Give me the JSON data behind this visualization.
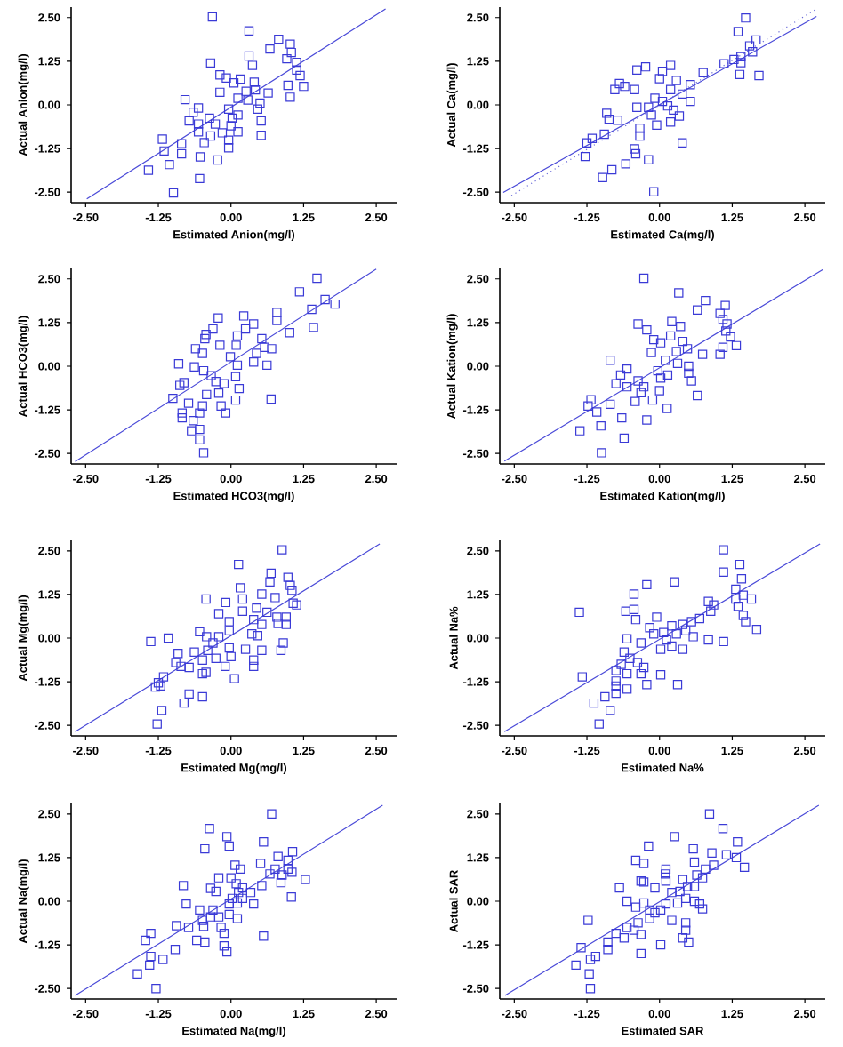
{
  "chart_data": [
    {
      "type": "scatter",
      "xlabel": "Estimated Anion(mg/l)",
      "ylabel": "Actual Anion(mg/l)",
      "xlim": [
        -2.75,
        2.85
      ],
      "ylim": [
        -2.8,
        2.8
      ],
      "xticks": [
        {
          "value": -2.5,
          "label": "-2.50"
        },
        {
          "value": -1.25,
          "label": "-1.25"
        },
        {
          "value": 0,
          "label": "0.00"
        },
        {
          "value": 1.25,
          "label": "1.25"
        },
        {
          "value": 2.5,
          "label": "2.50"
        }
      ],
      "yticks": [
        {
          "value": -2.5,
          "label": "-2.50"
        },
        {
          "value": -1.25,
          "label": "-1.25"
        },
        {
          "value": 0,
          "label": "0.00"
        },
        {
          "value": 1.25,
          "label": "1.25"
        },
        {
          "value": 2.5,
          "label": "2.50"
        }
      ],
      "series": [
        {
          "marker": "square",
          "color": "#3a3ad6",
          "x": [
            -0.32,
            0.31,
            0.82,
            1.02,
            0.67,
            0.31,
            1.04,
            0.96,
            -0.35,
            0.37,
            1.13,
            1.13,
            1.19,
            1.25,
            0.98,
            1.02,
            -0.19,
            -0.08,
            0.16,
            0.05,
            0.4,
            -0.19,
            0.64,
            0.42,
            0.26,
            0.12,
            0.29,
            0.5,
            0.46,
            -0.79,
            -0.65,
            -0.56,
            -0.72,
            -0.56,
            -0.37,
            -0.27,
            -0.04,
            0.02,
            0.12,
            0.0,
            0.12,
            -0.04,
            -0.04,
            -0.46,
            -0.35,
            -0.15,
            -0.56,
            0.52,
            0.52,
            -0.85,
            -0.85,
            -1.18,
            -1.15,
            -1.06,
            -1.42,
            -0.53,
            -0.23,
            -0.54,
            -0.99
          ],
          "values": [
            2.52,
            2.12,
            1.88,
            1.74,
            1.6,
            1.4,
            1.5,
            1.32,
            1.2,
            1.13,
            1.22,
            1.0,
            0.84,
            0.53,
            0.56,
            0.22,
            0.86,
            0.77,
            0.74,
            0.63,
            0.65,
            0.36,
            0.34,
            0.43,
            0.39,
            0.19,
            0.14,
            0.05,
            -0.12,
            0.15,
            -0.21,
            -0.09,
            -0.46,
            -0.55,
            -0.38,
            -0.55,
            -0.12,
            -0.38,
            -0.29,
            -0.6,
            -0.77,
            -1.01,
            -1.23,
            -1.08,
            -0.89,
            -0.8,
            -0.77,
            -0.46,
            -0.87,
            -1.11,
            -1.4,
            -0.98,
            -1.32,
            -1.71,
            -1.87,
            -1.49,
            -1.58,
            -2.11,
            -2.52
          ]
        },
        {
          "type": "line",
          "marker": "none",
          "color": "#4a4ad8",
          "line_style": "solid",
          "x": [
            -2.48,
            2.66
          ],
          "values": [
            -2.69,
            2.75
          ]
        }
      ]
    },
    {
      "type": "scatter",
      "xlabel": "Estimated Ca(mg/l)",
      "ylabel": "Actual Ca(mg/l)",
      "xlim": [
        -2.75,
        2.85
      ],
      "ylim": [
        -2.8,
        2.8
      ],
      "xticks": [
        {
          "value": -2.5,
          "label": "-2.50"
        },
        {
          "value": -1.25,
          "label": "-1.25"
        },
        {
          "value": 0,
          "label": "0.00"
        },
        {
          "value": 1.25,
          "label": "1.25"
        },
        {
          "value": 2.5,
          "label": "2.50"
        }
      ],
      "yticks": [
        {
          "value": -2.5,
          "label": "-2.50"
        },
        {
          "value": -1.25,
          "label": "-1.25"
        },
        {
          "value": 0,
          "label": "0.00"
        },
        {
          "value": 1.25,
          "label": "1.25"
        },
        {
          "value": 2.5,
          "label": "2.50"
        }
      ],
      "series": [
        {
          "marker": "square",
          "color": "#3a3ad6",
          "x": [
            1.48,
            1.35,
            1.66,
            1.55,
            1.6,
            1.4,
            1.28,
            1.4,
            1.11,
            0.75,
            1.38,
            1.71,
            -0.24,
            -0.39,
            0.19,
            0.05,
            -0.69,
            -0.6,
            -0.77,
            -0.43,
            0,
            0.29,
            0.53,
            0.19,
            0.39,
            0.53,
            -0.08,
            0.05,
            0.14,
            0.24,
            0.34,
            -0.19,
            -0.39,
            -0.14,
            -0.05,
            0.19,
            -0.34,
            -0.34,
            0.39,
            -0.91,
            -0.87,
            -0.72,
            -0.95,
            -1.16,
            -1.25,
            -1.28,
            -0.43,
            -0.41,
            -0.19,
            -0.58,
            -0.82,
            -0.98,
            -0.1
          ],
          "values": [
            2.49,
            2.1,
            1.86,
            1.69,
            1.52,
            1.38,
            1.3,
            1.21,
            1.18,
            0.92,
            0.87,
            0.84,
            1.09,
            1.0,
            1.13,
            0.96,
            0.61,
            0.53,
            0.44,
            0.44,
            0.75,
            0.7,
            0.58,
            0.44,
            0.31,
            0.1,
            0.19,
            0.1,
            -0.03,
            -0.15,
            -0.32,
            -0.07,
            -0.07,
            -0.29,
            -0.58,
            -0.49,
            -0.67,
            -0.89,
            -1.09,
            -0.24,
            -0.41,
            -0.44,
            -0.84,
            -0.96,
            -1.09,
            -1.48,
            -1.26,
            -1.4,
            -1.57,
            -1.69,
            -1.86,
            -2.08,
            -2.49
          ]
        },
        {
          "type": "line",
          "marker": "none",
          "color": "#4a4ad8",
          "line_style": "solid",
          "x": [
            -2.69,
            2.7
          ],
          "values": [
            -2.51,
            2.53
          ]
        },
        {
          "type": "line",
          "marker": "none",
          "color": "#6a6ad8",
          "line_style": "dotted",
          "x": [
            -2.55,
            2.7
          ],
          "values": [
            -2.6,
            2.75
          ]
        }
      ]
    },
    {
      "type": "scatter",
      "xlabel": "Estimated HCO3(mg/l)",
      "ylabel": "Actual HCO3(mg/l)",
      "xlim": [
        -2.75,
        2.85
      ],
      "ylim": [
        -2.8,
        2.8
      ],
      "xticks": [
        {
          "value": -2.5,
          "label": "-2.50"
        },
        {
          "value": -1.25,
          "label": "-1.25"
        },
        {
          "value": 0,
          "label": "0.00"
        },
        {
          "value": 1.25,
          "label": "1.25"
        },
        {
          "value": 2.5,
          "label": "2.50"
        }
      ],
      "yticks": [
        {
          "value": -2.5,
          "label": "-2.50"
        },
        {
          "value": -1.25,
          "label": "-1.25"
        },
        {
          "value": 0,
          "label": "0.00"
        },
        {
          "value": 1.25,
          "label": "1.25"
        },
        {
          "value": 2.5,
          "label": "2.50"
        }
      ],
      "series": [
        {
          "marker": "square",
          "color": "#3a3ad6",
          "x": [
            1.48,
            1.18,
            1.62,
            1.79,
            1.39,
            0.79,
            0.79,
            1.42,
            1.01,
            0.22,
            0.39,
            0.25,
            -0.22,
            -0.31,
            -0.43,
            -0.45,
            0.11,
            0.09,
            -0.19,
            0.53,
            0.58,
            0.7,
            0.44,
            0.39,
            0.62,
            -0.01,
            0.11,
            -0.61,
            -0.49,
            -0.63,
            -0.47,
            -0.34,
            -0.26,
            -0.12,
            0.08,
            -0.9,
            -0.88,
            -0.81,
            -0.73,
            -0.42,
            -0.49,
            -0.21,
            -0.17,
            -0.09,
            0.08,
            0.14,
            0.69,
            -1.0,
            -0.84,
            -0.84,
            -0.54,
            -0.65,
            -0.68,
            -0.54,
            -0.54,
            -0.47
          ],
          "values": [
            2.52,
            2.13,
            1.91,
            1.78,
            1.63,
            1.54,
            1.31,
            1.11,
            0.96,
            1.44,
            1.21,
            1.07,
            1.38,
            1.07,
            0.91,
            0.79,
            0.87,
            0.6,
            0.6,
            0.79,
            0.54,
            0.5,
            0.37,
            0.12,
            0.03,
            0.27,
            0.03,
            0.5,
            0.37,
            -0.02,
            -0.13,
            -0.27,
            -0.44,
            -0.5,
            -0.3,
            0.07,
            -0.55,
            -0.47,
            -1.06,
            -0.81,
            -1.14,
            -0.77,
            -1.14,
            -1.34,
            -0.97,
            -0.64,
            -0.94,
            -0.92,
            -1.34,
            -1.48,
            -1.34,
            -1.56,
            -1.85,
            -1.81,
            -2.11,
            -2.48
          ]
        },
        {
          "type": "line",
          "marker": "none",
          "color": "#4a4ad8",
          "line_style": "solid",
          "x": [
            -2.68,
            2.5
          ],
          "values": [
            -2.73,
            2.78
          ]
        }
      ]
    },
    {
      "type": "scatter",
      "xlabel": "Estimated Kation(mg/l)",
      "ylabel": "Actual Kation(mg/l)",
      "xlim": [
        -2.75,
        2.85
      ],
      "ylim": [
        -2.8,
        2.8
      ],
      "xticks": [
        {
          "value": -2.5,
          "label": "-2.50"
        },
        {
          "value": -1.25,
          "label": "-1.25"
        },
        {
          "value": 0,
          "label": "0.00"
        },
        {
          "value": 1.25,
          "label": "1.25"
        },
        {
          "value": 2.5,
          "label": "2.50"
        }
      ],
      "yticks": [
        {
          "value": -2.5,
          "label": "-2.50"
        },
        {
          "value": -1.25,
          "label": "-1.25"
        },
        {
          "value": 0,
          "label": "0.00"
        },
        {
          "value": 1.25,
          "label": "1.25"
        },
        {
          "value": 2.5,
          "label": "2.50"
        }
      ],
      "series": [
        {
          "marker": "square",
          "color": "#3a3ad6",
          "x": [
            -0.27,
            0.33,
            0.79,
            1.13,
            0.65,
            1.04,
            1.09,
            0.21,
            -0.37,
            0.36,
            1.16,
            1.14,
            1.22,
            1.32,
            1.09,
            1.04,
            -0.22,
            -0.1,
            0.19,
            0.02,
            0.4,
            -0.14,
            0.74,
            0.48,
            0.29,
            0.1,
            0.31,
            0.5,
            0.5,
            -0.85,
            -0.56,
            -0.67,
            -0.75,
            -0.56,
            -0.37,
            -0.27,
            -0.03,
            0.02,
            0.14,
            0,
            -0.12,
            0.13,
            -0.42,
            -0.32,
            0.55,
            0.65,
            -0.85,
            -0.65,
            -1.18,
            -1.23,
            -1.08,
            -1.01,
            -1.37,
            -0.22,
            -0.61,
            -1.0
          ],
          "values": [
            2.52,
            2.1,
            1.88,
            1.74,
            1.61,
            1.51,
            1.34,
            1.28,
            1.21,
            1.14,
            1.21,
            1.01,
            0.84,
            0.59,
            0.54,
            0.34,
            1.04,
            0.76,
            0.87,
            0.67,
            0.71,
            0.39,
            0.34,
            0.5,
            0.42,
            0.17,
            0.08,
            0,
            -0.2,
            0.17,
            -0.08,
            -0.25,
            -0.5,
            -0.59,
            -0.42,
            -0.59,
            -0.13,
            -0.34,
            -0.25,
            -0.7,
            -0.97,
            -1.21,
            -1.01,
            -0.76,
            -0.42,
            -0.84,
            -1.09,
            -1.48,
            -0.96,
            -1.14,
            -1.31,
            -1.71,
            -1.85,
            -1.54,
            -2.06,
            -2.48
          ]
        },
        {
          "type": "line",
          "marker": "none",
          "color": "#4a4ad8",
          "line_style": "solid",
          "x": [
            -2.67,
            2.81
          ],
          "values": [
            -2.72,
            2.77
          ]
        }
      ]
    },
    {
      "type": "scatter",
      "xlabel": "Estimated Mg(mg/l)",
      "ylabel": "Actual Mg(mg/l)",
      "xlim": [
        -2.75,
        2.85
      ],
      "ylim": [
        -2.8,
        2.8
      ],
      "xticks": [
        {
          "value": -2.5,
          "label": "-2.50"
        },
        {
          "value": -1.25,
          "label": "-1.25"
        },
        {
          "value": 0,
          "label": "0.00"
        },
        {
          "value": 1.25,
          "label": "1.25"
        },
        {
          "value": 2.5,
          "label": "2.50"
        }
      ],
      "yticks": [
        {
          "value": -2.5,
          "label": "-2.50"
        },
        {
          "value": -1.25,
          "label": "-1.25"
        },
        {
          "value": 0,
          "label": "0.00"
        },
        {
          "value": 1.25,
          "label": "1.25"
        },
        {
          "value": 2.5,
          "label": "2.50"
        }
      ],
      "series": [
        {
          "marker": "square",
          "color": "#3a3ad6",
          "x": [
            0.88,
            0.13,
            0.69,
            0.67,
            0.98,
            1.02,
            1.05,
            0.16,
            0.2,
            0.53,
            0.76,
            -0.43,
            1.07,
            1.13,
            -0.09,
            -0.21,
            0.2,
            0.44,
            0.62,
            0.79,
            0.81,
            0.95,
            0.39,
            0.53,
            0.36,
            0.46,
            0.95,
            -0.03,
            -0.03,
            -1.38,
            -1.08,
            -0.54,
            -0.42,
            -0.31,
            -0.21,
            -0.4,
            -0.03,
            0.25,
            0.53,
            0.86,
            0.9,
            -0.91,
            -0.63,
            -0.95,
            -0.72,
            -0.86,
            -0.49,
            -0.26,
            -0.1,
            0,
            0.39,
            0.39,
            0.06,
            -0.49,
            -0.43,
            -1.25,
            -1.3,
            -1.21,
            -1.16,
            -0.72,
            -0.49,
            -0.81,
            -1.19,
            -1.27
          ],
          "values": [
            2.53,
            2.11,
            1.86,
            1.61,
            1.74,
            1.51,
            1.37,
            1.44,
            1.12,
            1.26,
            1.16,
            1.12,
            1.0,
            0.95,
            1.02,
            0.7,
            0.77,
            0.86,
            0.74,
            0.6,
            0.42,
            0.39,
            0.53,
            0.39,
            0.12,
            0.07,
            0.6,
            0.47,
            0.21,
            -0.1,
            0,
            0.18,
            0.04,
            -0.14,
            0.04,
            -0.35,
            -0.28,
            -0.32,
            -0.35,
            -0.35,
            -0.14,
            -0.44,
            -0.4,
            -0.7,
            -0.84,
            -0.81,
            -0.63,
            -0.58,
            -0.81,
            -0.53,
            -0.63,
            -0.81,
            -1.16,
            -1.02,
            -0.98,
            -1.28,
            -1.4,
            -1.37,
            -1.11,
            -1.6,
            -1.68,
            -1.86,
            -2.07,
            -2.46
          ]
        },
        {
          "type": "line",
          "marker": "none",
          "color": "#4a4ad8",
          "line_style": "solid",
          "x": [
            -2.68,
            2.56
          ],
          "values": [
            -2.68,
            2.7
          ]
        }
      ]
    },
    {
      "type": "scatter",
      "xlabel": "Estimated Na%",
      "ylabel": "Actual Na%",
      "xlim": [
        -2.75,
        2.85
      ],
      "ylim": [
        -2.8,
        2.8
      ],
      "xticks": [
        {
          "value": -2.5,
          "label": "-2.50"
        },
        {
          "value": -1.25,
          "label": "-1.25"
        },
        {
          "value": 0,
          "label": "0.00"
        },
        {
          "value": 1.25,
          "label": "1.25"
        },
        {
          "value": 2.5,
          "label": "2.50"
        }
      ],
      "yticks": [
        {
          "value": -2.5,
          "label": "-2.50"
        },
        {
          "value": -1.25,
          "label": "-1.25"
        },
        {
          "value": 0,
          "label": "0.00"
        },
        {
          "value": 1.25,
          "label": "1.25"
        },
        {
          "value": 2.5,
          "label": "2.50"
        }
      ],
      "series": [
        {
          "marker": "square",
          "color": "#3a3ad6",
          "x": [
            1.1,
            1.38,
            1.1,
            1.41,
            0.26,
            -0.22,
            1.31,
            1.44,
            1.58,
            1.31,
            -0.44,
            0.84,
            0.93,
            1.35,
            1.44,
            1.48,
            1.67,
            -1.38,
            -0.58,
            -0.44,
            -0.41,
            -0.05,
            0.88,
            0.69,
            0.55,
            0.4,
            0.21,
            -0.17,
            -0.1,
            0.07,
            0.29,
            0.45,
            0.58,
            0.84,
            1.1,
            -0.56,
            -0.32,
            0.02,
            0.21,
            0.4,
            0.12,
            -0.61,
            -0.51,
            -0.38,
            -0.27,
            -0.66,
            -0.75,
            -0.56,
            -0.32,
            0.02,
            -0.75,
            -0.75,
            -1.33,
            -0.22,
            0.31,
            -0.56,
            -0.75,
            -0.94,
            -1.13,
            -0.85,
            -1.04
          ],
          "values": [
            2.53,
            2.11,
            1.89,
            1.7,
            1.61,
            1.53,
            1.4,
            1.23,
            1.12,
            1.12,
            1.26,
            1.05,
            0.95,
            0.91,
            0.65,
            0.47,
            0.25,
            0.74,
            0.77,
            0.82,
            0.53,
            0.6,
            0.77,
            0.56,
            0.47,
            0.39,
            0.35,
            0.3,
            0.12,
            0.16,
            0.12,
            0.21,
            0.04,
            -0.05,
            -0.1,
            -0.02,
            -0.14,
            -0.32,
            -0.23,
            -0.32,
            -0.05,
            -0.4,
            -0.58,
            -0.7,
            -0.84,
            -0.75,
            -0.93,
            -1.02,
            -1.02,
            -1.05,
            -1.23,
            -1.37,
            -1.11,
            -1.33,
            -1.33,
            -1.46,
            -1.58,
            -1.68,
            -1.86,
            -2.07,
            -2.46
          ]
        },
        {
          "type": "line",
          "marker": "none",
          "color": "#4a4ad8",
          "line_style": "solid",
          "x": [
            -2.67,
            2.76
          ],
          "values": [
            -2.68,
            2.7
          ]
        }
      ]
    },
    {
      "type": "scatter",
      "xlabel": "Estimated Na(mg/l)",
      "ylabel": "Actual Na(mg/l)",
      "xlim": [
        -2.75,
        2.85
      ],
      "ylim": [
        -2.8,
        2.8
      ],
      "xticks": [
        {
          "value": -2.5,
          "label": "-2.50"
        },
        {
          "value": -1.25,
          "label": "-1.25"
        },
        {
          "value": 0,
          "label": "0.00"
        },
        {
          "value": 1.25,
          "label": "1.25"
        },
        {
          "value": 2.5,
          "label": "2.50"
        }
      ],
      "yticks": [
        {
          "value": -2.5,
          "label": "-2.50"
        },
        {
          "value": -1.25,
          "label": "-1.25"
        },
        {
          "value": 0,
          "label": "0.00"
        },
        {
          "value": 1.25,
          "label": "1.25"
        },
        {
          "value": 2.5,
          "label": "2.50"
        }
      ],
      "series": [
        {
          "marker": "square",
          "color": "#3a3ad6",
          "x": [
            0.7,
            -0.37,
            -0.07,
            0.56,
            -0.45,
            -0.03,
            1.06,
            0.81,
            0.98,
            0.51,
            0.07,
            0.16,
            0.76,
            0.67,
            0.88,
            0.98,
            1.05,
            1.28,
            0.86,
            0.53,
            -0.21,
            0,
            0.09,
            0.2,
            -0.82,
            -0.35,
            -0.26,
            1.04,
            0.34,
            0.13,
            0.2,
            0.02,
            -0.03,
            0.11,
            0.39,
            -0.77,
            -0.54,
            -0.31,
            -0.35,
            -0.49,
            -0.21,
            -0.03,
            0.11,
            -0.94,
            -0.73,
            -0.47,
            -0.17,
            -0.12,
            -0.59,
            -0.45,
            -0.12,
            0.56,
            -0.07,
            -1.38,
            -1.47,
            -0.96,
            -1.38,
            -1.17,
            -1.4,
            -1.61,
            -1.29
          ],
          "values": [
            2.5,
            2.08,
            1.85,
            1.7,
            1.5,
            1.58,
            1.42,
            1.28,
            1.17,
            1.08,
            1.03,
            0.92,
            0.92,
            0.78,
            0.75,
            0.92,
            0.83,
            0.62,
            0.53,
            0.45,
            0.67,
            0.67,
            0.5,
            0.38,
            0.45,
            0.37,
            0.28,
            0.12,
            0.25,
            0.25,
            0.08,
            0.08,
            -0.08,
            -0.05,
            -0.08,
            -0.08,
            -0.25,
            -0.25,
            -0.45,
            -0.55,
            -0.45,
            -0.38,
            -0.5,
            -0.7,
            -0.75,
            -0.72,
            -0.75,
            -0.92,
            -1.12,
            -1.17,
            -1.28,
            -1.0,
            -1.45,
            -0.92,
            -1.12,
            -1.38,
            -1.58,
            -1.67,
            -1.83,
            -2.08,
            -2.5
          ]
        },
        {
          "type": "line",
          "marker": "none",
          "color": "#4a4ad8",
          "line_style": "solid",
          "x": [
            -2.68,
            2.61
          ],
          "values": [
            -2.7,
            2.75
          ]
        }
      ]
    },
    {
      "type": "scatter",
      "xlabel": "Estimated SAR",
      "ylabel": "Actual SAR",
      "xlim": [
        -2.75,
        2.85
      ],
      "ylim": [
        -2.8,
        2.8
      ],
      "xticks": [
        {
          "value": -2.5,
          "label": "-2.50"
        },
        {
          "value": -1.25,
          "label": "-1.25"
        },
        {
          "value": 0,
          "label": "0.00"
        },
        {
          "value": 1.25,
          "label": "1.25"
        },
        {
          "value": 2.5,
          "label": "2.50"
        }
      ],
      "yticks": [
        {
          "value": -2.5,
          "label": "-2.50"
        },
        {
          "value": -1.25,
          "label": "-1.25"
        },
        {
          "value": 0,
          "label": "0.00"
        },
        {
          "value": 1.25,
          "label": "1.25"
        },
        {
          "value": 2.5,
          "label": "2.50"
        }
      ],
      "series": [
        {
          "marker": "square",
          "color": "#3a3ad6",
          "x": [
            0.86,
            1.09,
            0.26,
            1.34,
            -0.19,
            0.58,
            0.9,
            1.15,
            1.32,
            1.46,
            -0.41,
            -0.27,
            0.6,
            0.93,
            0.11,
            0.1,
            0.79,
            -0.32,
            -0.27,
            0.11,
            0.4,
            0.64,
            0.74,
            -0.69,
            -0.08,
            0.21,
            0.35,
            0.48,
            0.6,
            0.45,
            0.6,
            0.69,
            0.74,
            0.31,
            0.11,
            -0.56,
            -0.27,
            -0.41,
            -0.17,
            -0.08,
            0.02,
            -0.17,
            0.21,
            -0.37,
            -0.56,
            -0.44,
            0.45,
            0.45,
            -0.32,
            -0.61,
            -0.75,
            -0.89,
            0.4,
            0.5,
            0.02,
            -0.89,
            -0.32,
            -1.23,
            -1.35,
            -1.19,
            -1.1,
            -1.44,
            -1.21,
            -1.19
          ],
          "values": [
            2.5,
            2.08,
            1.85,
            1.7,
            1.58,
            1.5,
            1.38,
            1.33,
            1.25,
            0.97,
            1.17,
            1.08,
            1.12,
            1.03,
            0.92,
            0.78,
            0.92,
            0.58,
            0.55,
            0.58,
            0.62,
            0.75,
            0.67,
            0.38,
            0.38,
            0.25,
            0.28,
            0.42,
            0.42,
            0.08,
            0,
            -0.08,
            -0.22,
            -0.05,
            -0.08,
            0,
            -0.05,
            -0.17,
            -0.25,
            -0.33,
            -0.25,
            -0.5,
            -0.55,
            -0.62,
            -0.75,
            -0.83,
            -0.62,
            -0.83,
            -0.95,
            -1.05,
            -0.92,
            -1.17,
            -1.05,
            -1.17,
            -1.25,
            -1.38,
            -1.5,
            -0.55,
            -1.33,
            -1.67,
            -1.58,
            -1.83,
            -2.08,
            -2.5
          ]
        },
        {
          "type": "line",
          "marker": "none",
          "color": "#4a4ad8",
          "line_style": "solid",
          "x": [
            -2.66,
            2.74
          ],
          "values": [
            -2.7,
            2.75
          ]
        }
      ]
    }
  ]
}
